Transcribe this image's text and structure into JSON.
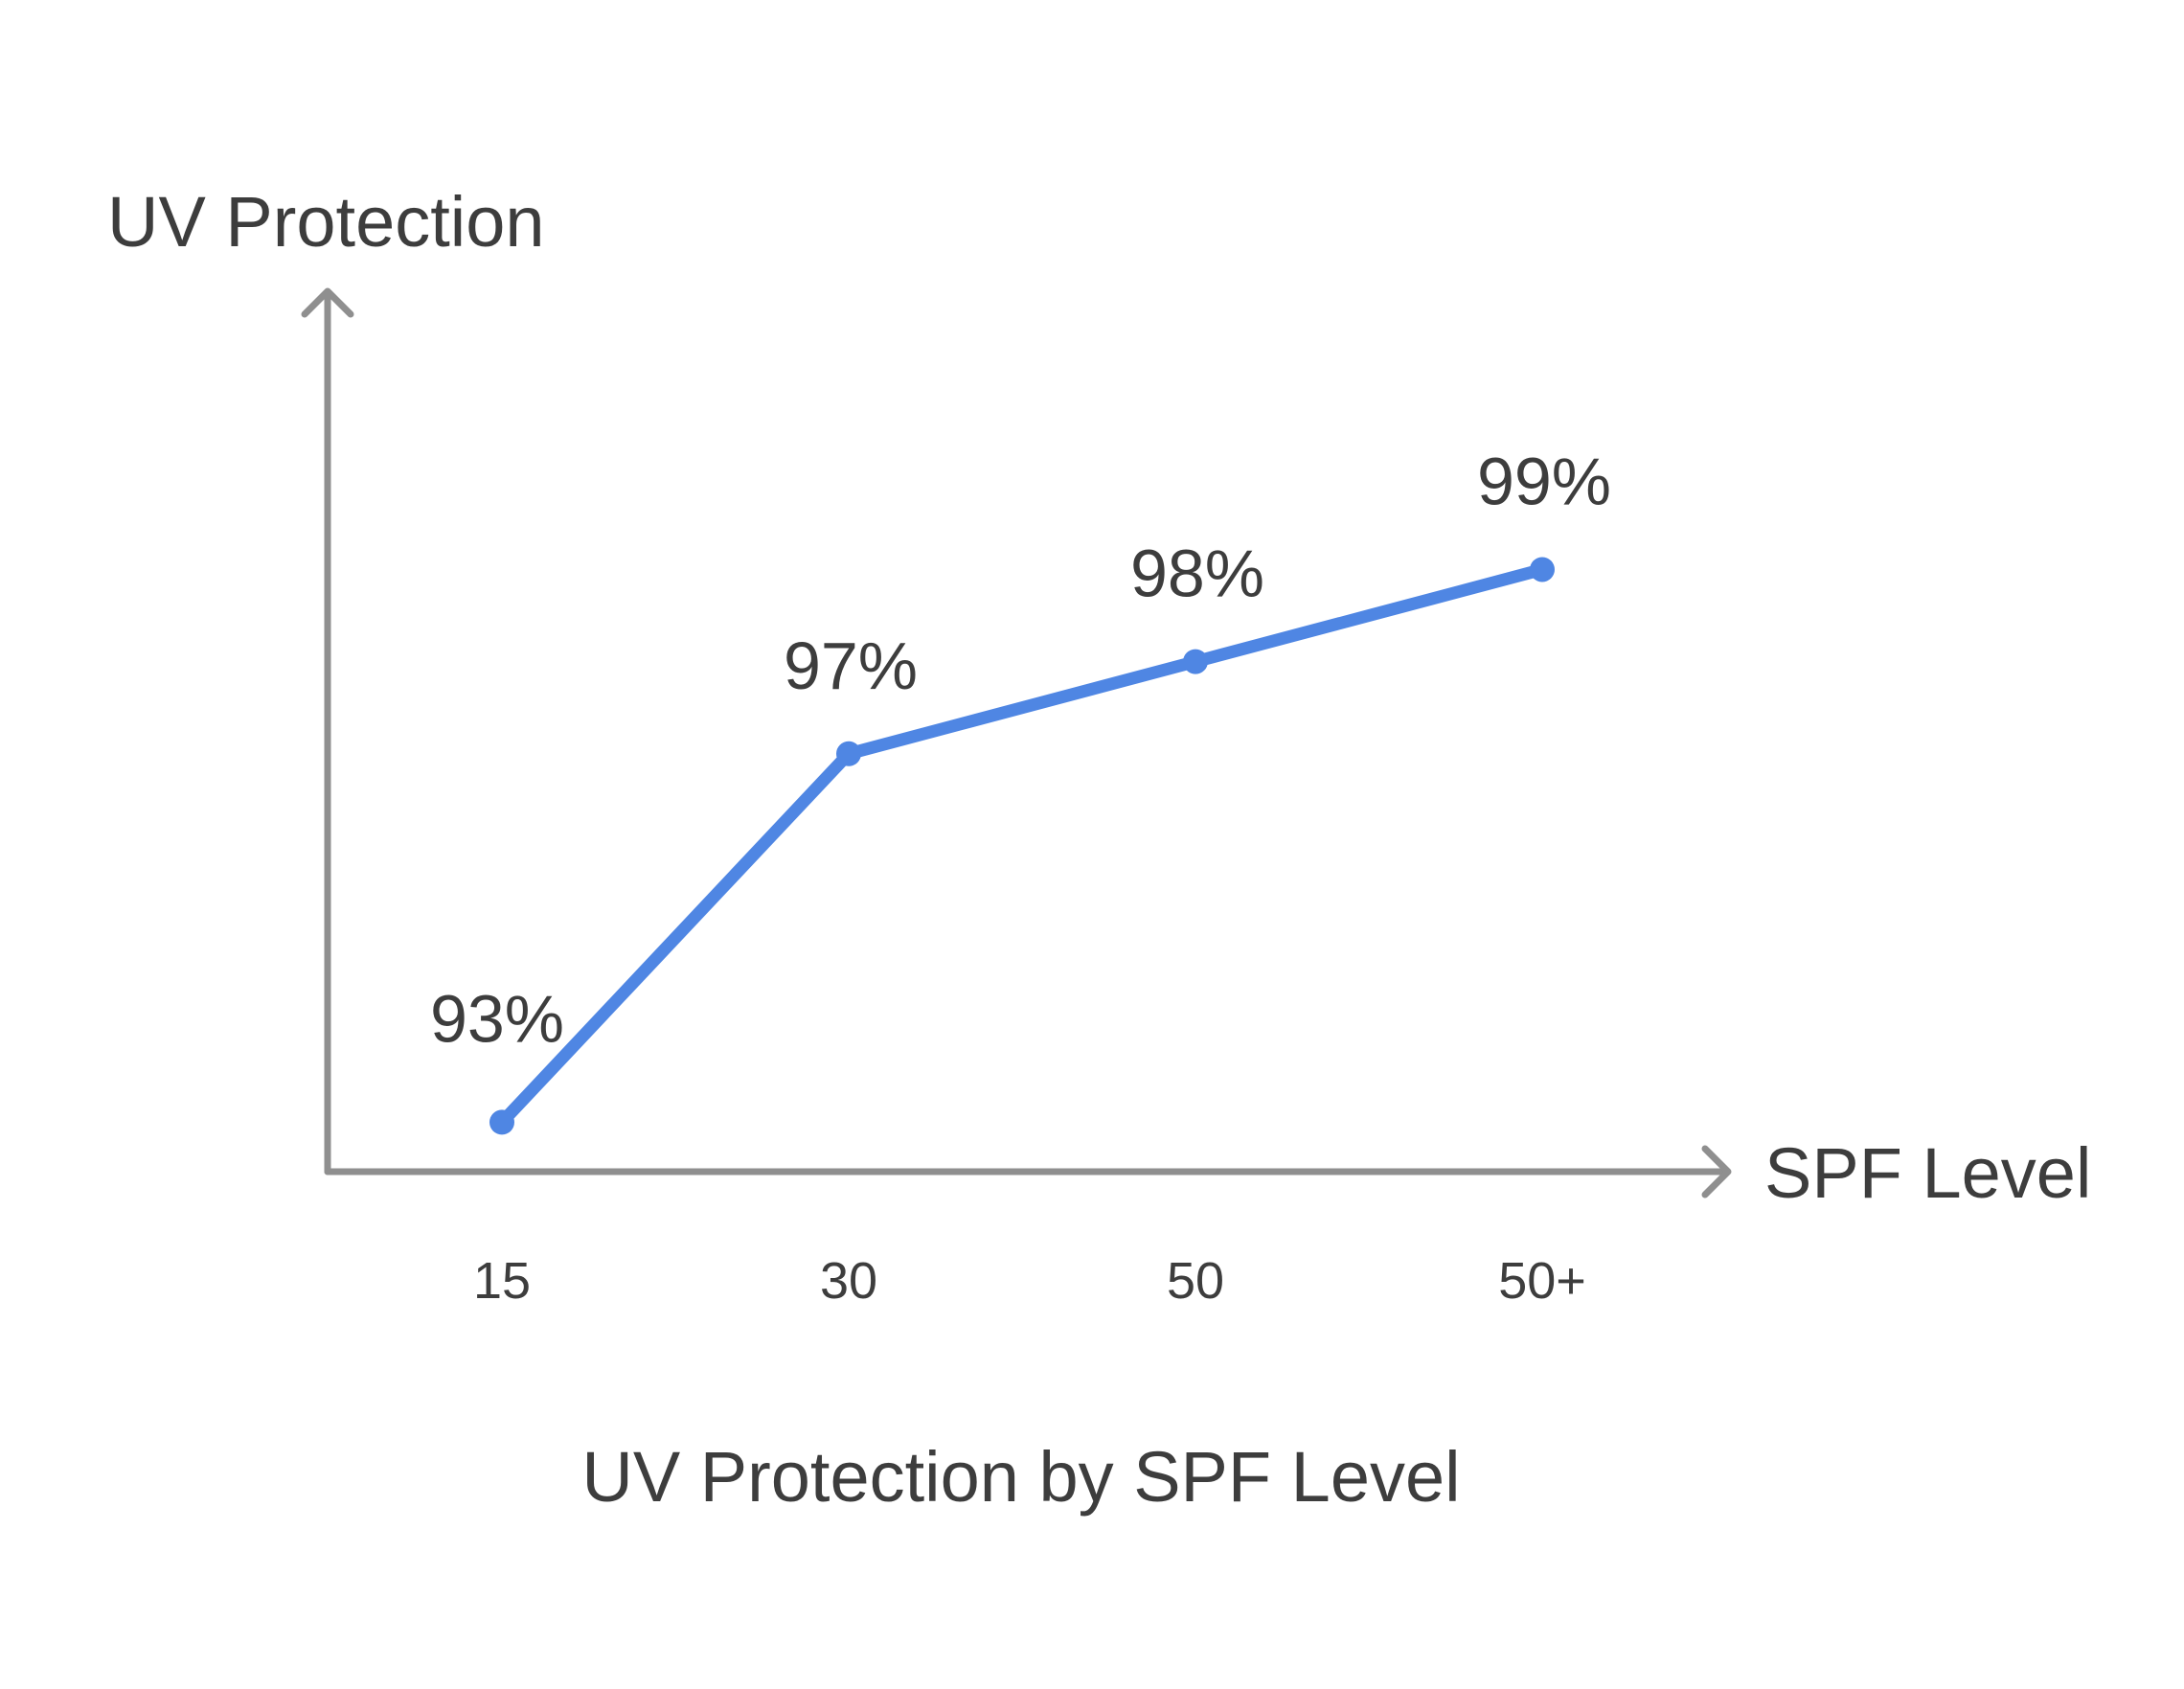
{
  "chart_data": {
    "type": "line",
    "title": "UV Protection by SPF Level",
    "xlabel": "SPF Level",
    "ylabel": "UV Protection",
    "categories": [
      "15",
      "30",
      "50",
      "50+"
    ],
    "series": [
      {
        "values": [
          93,
          97,
          98,
          99
        ],
        "labels": [
          "93%",
          "97%",
          "98%",
          "99%"
        ],
        "color": "#4f86e3"
      }
    ],
    "ylim": [
      89,
      102
    ],
    "grid": false,
    "legend": "none"
  }
}
